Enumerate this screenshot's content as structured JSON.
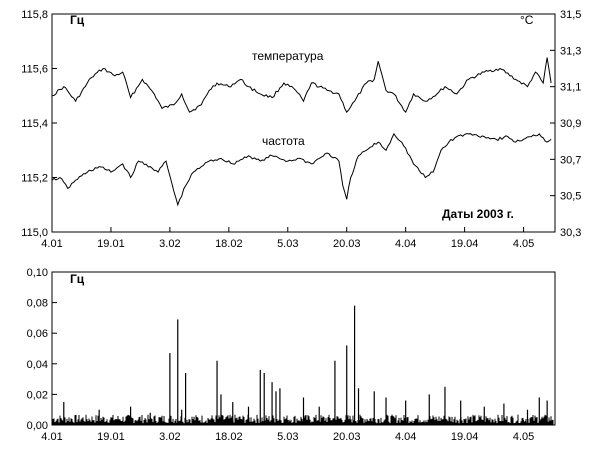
{
  "chart_data": [
    {
      "type": "line",
      "unit_left": "Гц",
      "unit_right": "°C",
      "annotation": "Даты 2003 г.",
      "x_tick_labels": [
        "4.01",
        "19.01",
        "3.02",
        "18.02",
        "5.03",
        "20.03",
        "4.04",
        "19.04",
        "4.05"
      ],
      "x_tick_day_offsets": [
        0,
        15,
        30,
        45,
        60,
        75,
        90,
        105,
        120
      ],
      "x_range_days": [
        0,
        128
      ],
      "y_left_ticks": [
        "115,0",
        "115,2",
        "115,4",
        "115,6",
        "115,8"
      ],
      "y_left_range": [
        115.0,
        115.8
      ],
      "y_right_ticks": [
        "30,3",
        "30,5",
        "30,7",
        "30,9",
        "31,1",
        "31,3",
        "31,5"
      ],
      "y_right_range": [
        30.3,
        31.5
      ],
      "series": [
        {
          "name": "температура",
          "axis": "right",
          "x": [
            0,
            3,
            6,
            10,
            13,
            16,
            18,
            20,
            23,
            26,
            28,
            31,
            33,
            35,
            38,
            40,
            42,
            45,
            48,
            50,
            53,
            56,
            59,
            62,
            64,
            66,
            70,
            73,
            75,
            77,
            80,
            82,
            83,
            85,
            87,
            90,
            92,
            95,
            98,
            100,
            103,
            106,
            110,
            114,
            118,
            121,
            123,
            125,
            126,
            127
          ],
          "y": [
            31.05,
            31.1,
            31.02,
            31.15,
            31.2,
            31.16,
            31.18,
            31.04,
            31.14,
            31.06,
            30.98,
            31.0,
            31.06,
            30.96,
            31.0,
            31.08,
            31.12,
            31.1,
            31.14,
            31.1,
            31.06,
            31.04,
            31.12,
            31.08,
            31.02,
            31.12,
            31.08,
            31.06,
            30.96,
            31.02,
            31.12,
            31.14,
            31.24,
            31.08,
            31.06,
            30.96,
            31.06,
            31.02,
            31.06,
            31.1,
            31.06,
            31.14,
            31.18,
            31.2,
            31.14,
            31.1,
            31.18,
            31.12,
            31.26,
            31.12
          ]
        },
        {
          "name": "частота",
          "axis": "left",
          "x": [
            0,
            2,
            4,
            6,
            9,
            12,
            15,
            18,
            20,
            22,
            25,
            27,
            29,
            31,
            32,
            34,
            36,
            38,
            40,
            43,
            46,
            50,
            53,
            56,
            60,
            63,
            66,
            70,
            73,
            74,
            75,
            76,
            78,
            80,
            83,
            85,
            87,
            89,
            91,
            92,
            95,
            97,
            99,
            101,
            103,
            106,
            110,
            113,
            116,
            118,
            120,
            122,
            124,
            126,
            127
          ],
          "y": [
            115.19,
            115.2,
            115.16,
            115.19,
            115.22,
            115.24,
            115.22,
            115.25,
            115.2,
            115.26,
            115.24,
            115.22,
            115.26,
            115.15,
            115.1,
            115.17,
            115.22,
            115.24,
            115.26,
            115.27,
            115.25,
            115.28,
            115.26,
            115.28,
            115.26,
            115.27,
            115.25,
            115.29,
            115.26,
            115.17,
            115.12,
            115.2,
            115.28,
            115.3,
            115.33,
            115.3,
            115.36,
            115.33,
            115.28,
            115.25,
            115.2,
            115.22,
            115.3,
            115.33,
            115.35,
            115.36,
            115.35,
            115.34,
            115.35,
            115.33,
            115.34,
            115.35,
            115.36,
            115.33,
            115.34
          ]
        }
      ]
    },
    {
      "type": "line",
      "unit_left": "Гц",
      "x_tick_labels": [
        "4.01",
        "19.01",
        "3.02",
        "18.02",
        "5.03",
        "20.03",
        "4.04",
        "19.04",
        "4.05"
      ],
      "x_tick_day_offsets": [
        0,
        15,
        30,
        45,
        60,
        75,
        90,
        105,
        120
      ],
      "x_range_days": [
        0,
        128
      ],
      "y_ticks": [
        "0,00",
        "0,02",
        "0,04",
        "0,06",
        "0,08",
        "0,10"
      ],
      "y_range": [
        0,
        0.1
      ],
      "baseline": 0.004,
      "spikes": {
        "x": [
          3,
          12,
          20,
          25,
          30,
          32,
          33,
          34,
          42,
          43,
          46,
          50,
          53,
          54,
          56,
          57,
          58,
          64,
          68,
          72,
          75,
          77,
          78,
          82,
          85,
          90,
          96,
          100,
          104,
          110,
          115,
          121,
          124,
          126
        ],
        "y": [
          0.015,
          0.01,
          0.012,
          0.008,
          0.047,
          0.069,
          0.01,
          0.034,
          0.042,
          0.02,
          0.015,
          0.012,
          0.036,
          0.034,
          0.028,
          0.022,
          0.024,
          0.018,
          0.012,
          0.042,
          0.052,
          0.078,
          0.024,
          0.022,
          0.018,
          0.016,
          0.02,
          0.025,
          0.016,
          0.012,
          0.014,
          0.01,
          0.018,
          0.016
        ]
      }
    }
  ]
}
